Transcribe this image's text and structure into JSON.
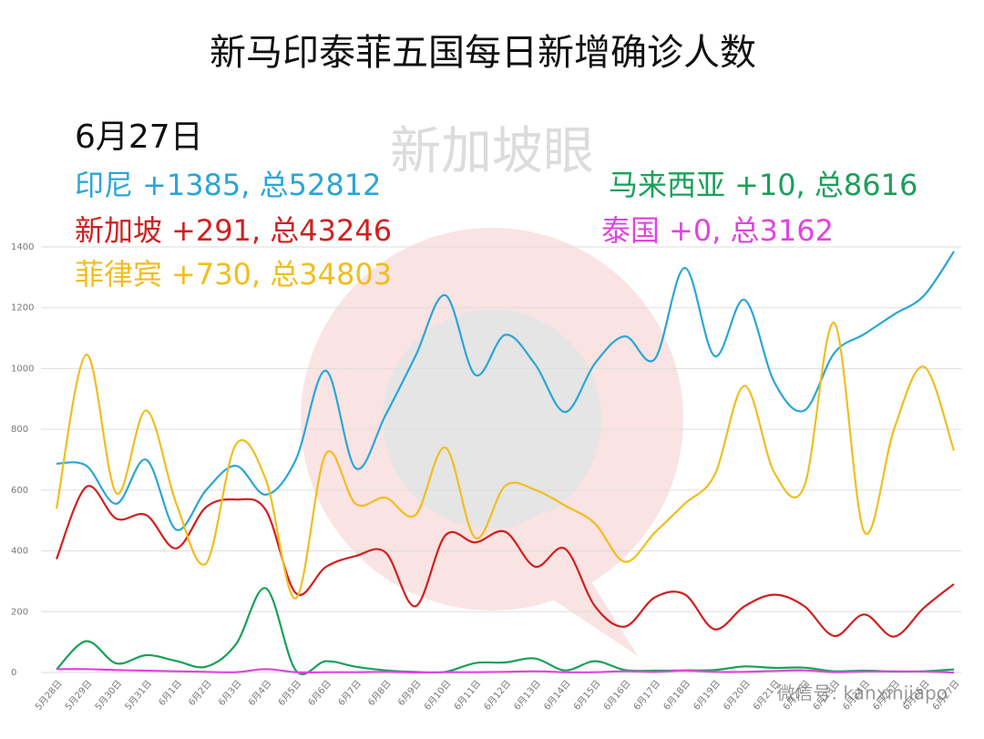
{
  "chart_data": {
    "type": "line",
    "title": "新马印泰菲五国每日新增确诊人数",
    "subtitle": "6月27日",
    "watermark": "新加坡眼",
    "footer": "微信号: kanxinjiapo",
    "categories": [
      "5月28日",
      "5月29日",
      "5月30日",
      "5月31日",
      "6月1日",
      "6月2日",
      "6月3日",
      "6月4日",
      "6月5日",
      "6月6日",
      "6月7日",
      "6月8日",
      "6月9日",
      "6月10日",
      "6月11日",
      "6月12日",
      "6月13日",
      "6月14日",
      "6月15日",
      "6月16日",
      "6月17日",
      "6月18日",
      "6月19日",
      "6月20日",
      "6月21日",
      "6月22日",
      "6月23日",
      "6月24日",
      "6月25日",
      "6月26日",
      "6月27日"
    ],
    "ylim": [
      0,
      1400
    ],
    "yticks": [
      0,
      200,
      400,
      600,
      800,
      1000,
      1200,
      1400
    ],
    "grid": true,
    "series": [
      {
        "name": "印尼",
        "summary": "+1385, 总52812",
        "color": "#2aa6d6",
        "values": [
          687,
          680,
          555,
          700,
          470,
          600,
          680,
          585,
          700,
          993,
          672,
          847,
          1041,
          1241,
          979,
          1111,
          1014,
          857,
          1017,
          1106,
          1031,
          1331,
          1041,
          1226,
          954,
          862,
          1051,
          1113,
          1178,
          1240,
          1385
        ]
      },
      {
        "name": "新加坡",
        "summary": "+291, 总43246",
        "color": "#d21f1f",
        "values": [
          373,
          611,
          506,
          518,
          408,
          544,
          569,
          534,
          261,
          347,
          383,
          395,
          218,
          451,
          428,
          463,
          348,
          407,
          218,
          151,
          247,
          257,
          142,
          218,
          256,
          218,
          120,
          191,
          118,
          213,
          291
        ]
      },
      {
        "name": "菲律宾",
        "summary": "+730, 总34803",
        "color": "#f2bd1d",
        "values": [
          539,
          1046,
          590,
          862,
          557,
          359,
          751,
          634,
          244,
          719,
          555,
          575,
          518,
          740,
          443,
          614,
          601,
          549,
          490,
          364,
          460,
          555,
          650,
          943,
          657,
          613,
          1150,
          463,
          801,
          1006,
          730
        ]
      },
      {
        "name": "马来西亚",
        "summary": "+10, 总8616",
        "color": "#1aa05a",
        "values": [
          10,
          103,
          30,
          57,
          38,
          19,
          93,
          277,
          7,
          37,
          19,
          7,
          2,
          2,
          31,
          33,
          46,
          7,
          37,
          8,
          6,
          7,
          8,
          20,
          15,
          16,
          4,
          6,
          3,
          4,
          10
        ]
      },
      {
        "name": "泰国",
        "summary": "+0, 总3162",
        "color": "#e044e0",
        "values": [
          11,
          11,
          8,
          6,
          4,
          2,
          1,
          11,
          1,
          1,
          1,
          2,
          0,
          1,
          1,
          2,
          4,
          1,
          1,
          4,
          2,
          6,
          2,
          2,
          5,
          7,
          1,
          3,
          4,
          3,
          0
        ]
      }
    ]
  }
}
